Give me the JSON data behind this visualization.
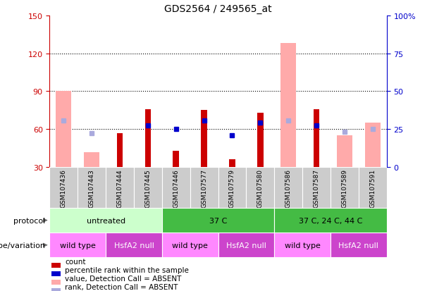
{
  "title": "GDS2564 / 249565_at",
  "samples": [
    "GSM107436",
    "GSM107443",
    "GSM107444",
    "GSM107445",
    "GSM107446",
    "GSM107577",
    "GSM107579",
    "GSM107580",
    "GSM107586",
    "GSM107587",
    "GSM107589",
    "GSM107591"
  ],
  "ylim_left": [
    30,
    150
  ],
  "ylim_right": [
    0,
    100
  ],
  "yticks_left": [
    30,
    60,
    90,
    120,
    150
  ],
  "yticks_right": [
    0,
    25,
    50,
    75,
    100
  ],
  "yticklabels_right": [
    "0",
    "25",
    "50",
    "75",
    "100%"
  ],
  "red_bars": [
    null,
    null,
    57,
    76,
    43,
    75,
    36,
    73,
    null,
    76,
    null,
    null
  ],
  "pink_bars": [
    90,
    42,
    null,
    null,
    null,
    null,
    null,
    null,
    128,
    null,
    55,
    65
  ],
  "blue_squares": [
    null,
    null,
    null,
    63,
    60,
    67,
    55,
    65,
    null,
    63,
    null,
    null
  ],
  "light_blue_squares": [
    67,
    57,
    null,
    null,
    null,
    null,
    null,
    null,
    67,
    null,
    58,
    60
  ],
  "protocol_groups": [
    {
      "label": "untreated",
      "start": 0,
      "end": 4,
      "color": "#ccffcc"
    },
    {
      "label": "37 C",
      "start": 4,
      "end": 8,
      "color": "#44bb44"
    },
    {
      "label": "37 C, 24 C, 44 C",
      "start": 8,
      "end": 12,
      "color": "#44bb44"
    }
  ],
  "genotype_groups": [
    {
      "label": "wild type",
      "start": 0,
      "end": 2,
      "color": "#ff88ff",
      "text_color": "#000000"
    },
    {
      "label": "HsfA2 null",
      "start": 2,
      "end": 4,
      "color": "#cc44cc",
      "text_color": "#ffffff"
    },
    {
      "label": "wild type",
      "start": 4,
      "end": 6,
      "color": "#ff88ff",
      "text_color": "#000000"
    },
    {
      "label": "HsfA2 null",
      "start": 6,
      "end": 8,
      "color": "#cc44cc",
      "text_color": "#ffffff"
    },
    {
      "label": "wild type",
      "start": 8,
      "end": 10,
      "color": "#ff88ff",
      "text_color": "#000000"
    },
    {
      "label": "HsfA2 null",
      "start": 10,
      "end": 12,
      "color": "#cc44cc",
      "text_color": "#ffffff"
    }
  ],
  "red_color": "#cc0000",
  "pink_color": "#ffaaaa",
  "blue_color": "#0000cc",
  "light_blue_color": "#aaaadd",
  "bg_color": "#ffffff",
  "tick_color_left": "#cc0000",
  "tick_color_right": "#0000cc",
  "sample_bg": "#cccccc"
}
